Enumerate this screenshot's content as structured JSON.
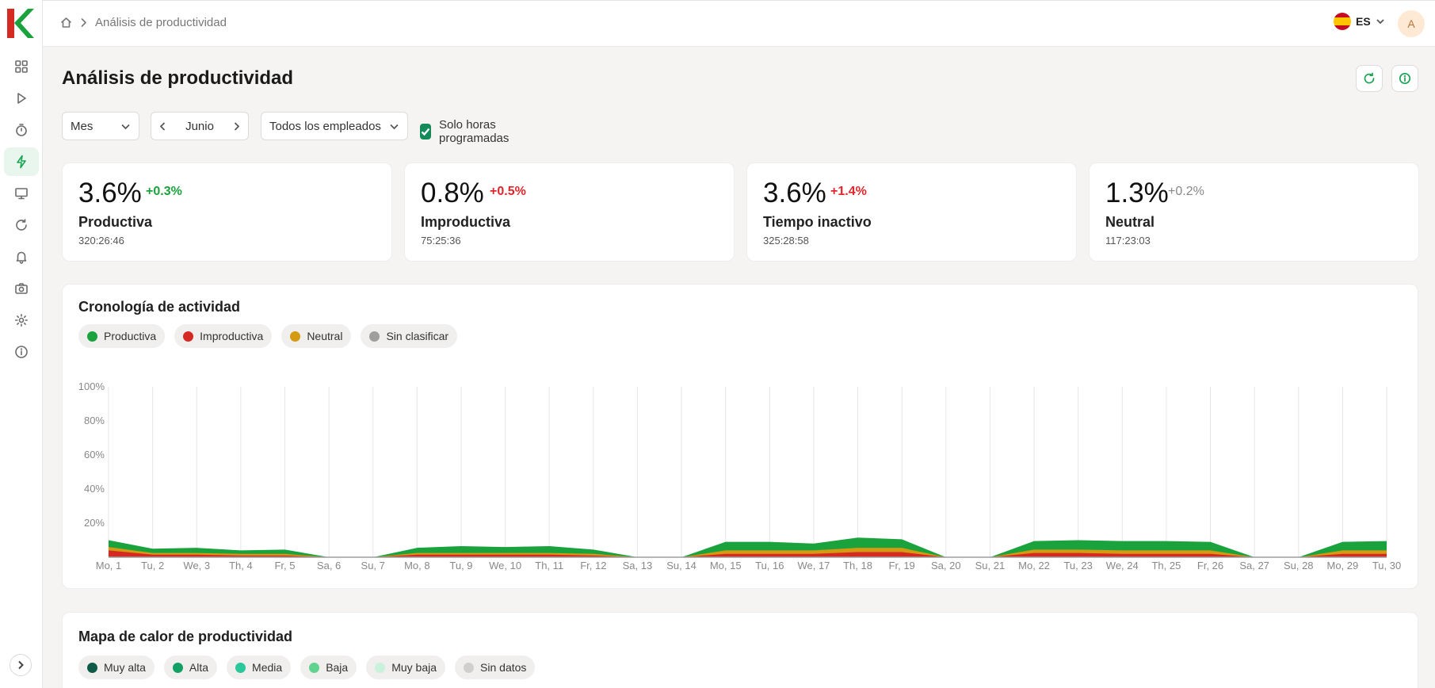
{
  "colors": {
    "productive": "#1aa33d",
    "unproductive": "#d42a21",
    "neutral": "#d39a12",
    "unclassified": "#9e9e9e",
    "accent": "#138a57"
  },
  "breadcrumb": {
    "home_icon": "home-icon",
    "current": "Análisis de productividad"
  },
  "language": {
    "code": "ES"
  },
  "user": {
    "initial": "A"
  },
  "page": {
    "title": "Análisis de productividad"
  },
  "filters": {
    "period": "Mes",
    "month": "Junio",
    "employees": "Todos los empleados",
    "scheduled_only_label": "Solo horas programadas",
    "scheduled_only_checked": true
  },
  "stats": [
    {
      "pct": "3.6%",
      "delta": "+0.3%",
      "delta_color": "#1aa33d",
      "label": "Productiva",
      "time": "320:26:46"
    },
    {
      "pct": "0.8%",
      "delta": "+0.5%",
      "delta_color": "#e0262b",
      "label": "Improductiva",
      "time": "75:25:36"
    },
    {
      "pct": "3.6%",
      "delta": "+1.4%",
      "delta_color": "#e0262b",
      "label": "Tiempo inactivo",
      "time": "325:28:58"
    },
    {
      "pct": "1.3%",
      "delta": "+0.2%",
      "delta_color": "#888888",
      "label": "Neutral",
      "time": "117:23:03"
    }
  ],
  "timeline": {
    "title": "Cronología de actividad",
    "legend": [
      {
        "label": "Productiva",
        "color": "#1aa33d"
      },
      {
        "label": "Improductiva",
        "color": "#d42a21"
      },
      {
        "label": "Neutral",
        "color": "#d39a12"
      },
      {
        "label": "Sin clasificar",
        "color": "#9e9e9e"
      }
    ]
  },
  "heatmap": {
    "title": "Mapa de calor de productividad",
    "legend": [
      {
        "label": "Muy alta",
        "color": "#0e5b48"
      },
      {
        "label": "Alta",
        "color": "#13a064"
      },
      {
        "label": "Media",
        "color": "#2cc79a"
      },
      {
        "label": "Baja",
        "color": "#5fd38f"
      },
      {
        "label": "Muy baja",
        "color": "#c9f2dc"
      },
      {
        "label": "Sin datos",
        "color": "#cfcfcf"
      }
    ]
  },
  "chart_data": {
    "type": "area",
    "title": "Cronología de actividad",
    "xlabel": "",
    "ylabel": "",
    "ylim": [
      0,
      100
    ],
    "yticks": [
      "20%",
      "40%",
      "60%",
      "80%",
      "100%"
    ],
    "categories": [
      "Mo, 1",
      "Tu, 2",
      "We, 3",
      "Th, 4",
      "Fr, 5",
      "Sa, 6",
      "Su, 7",
      "Mo, 8",
      "Tu, 9",
      "We, 10",
      "Th, 11",
      "Fr, 12",
      "Sa, 13",
      "Su, 14",
      "Mo, 15",
      "Tu, 16",
      "We, 17",
      "Th, 18",
      "Fr, 19",
      "Sa, 20",
      "Su, 21",
      "Mo, 22",
      "Tu, 23",
      "We, 24",
      "Th, 25",
      "Fr, 26",
      "Sa, 27",
      "Su, 28",
      "Mo, 29",
      "Tu, 30"
    ],
    "series": [
      {
        "name": "Improductiva",
        "values": [
          4,
          1.5,
          1.5,
          1,
          1,
          0,
          0,
          1.5,
          1.5,
          1.5,
          1.5,
          1,
          0,
          0,
          2,
          2,
          2,
          3,
          3,
          0,
          0,
          2.5,
          2.5,
          2,
          2,
          2,
          0,
          0,
          2,
          2
        ]
      },
      {
        "name": "Neutral",
        "values": [
          2,
          1,
          1,
          1,
          1,
          0,
          0,
          1,
          1,
          1,
          1,
          1,
          0,
          0,
          2,
          2,
          2,
          2.5,
          2.5,
          0,
          0,
          2,
          2,
          2,
          2,
          2,
          0,
          0,
          2,
          2
        ]
      },
      {
        "name": "Productiva",
        "values": [
          4,
          2.5,
          3,
          2,
          2.5,
          0,
          0,
          3,
          4,
          3.5,
          4,
          2.5,
          0,
          0,
          5,
          5,
          4,
          6,
          5,
          0,
          0,
          5,
          5.5,
          5.5,
          5.5,
          5,
          0,
          0,
          5,
          5.5
        ]
      }
    ],
    "grid": true,
    "legend_position": "top-left"
  }
}
